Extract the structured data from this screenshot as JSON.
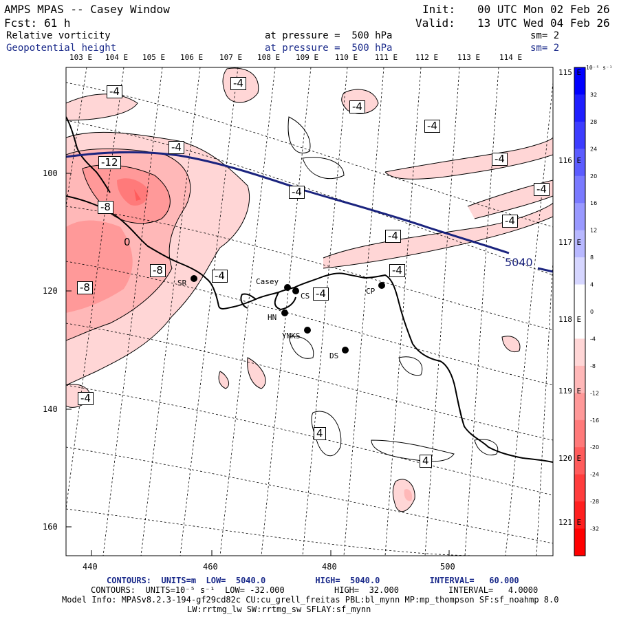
{
  "header": {
    "title": "AMPS MPAS -- Casey Window",
    "forecast_label": "Fcst:",
    "forecast_hours": "61 h",
    "init_label": "Init:",
    "init_time": "00 UTC Mon 02 Feb 26",
    "valid_label": "Valid:",
    "valid_time": "13 UTC Wed 04 Feb 26",
    "field1": "Relative vorticity",
    "field1_pressure": "at pressure =  500 hPa",
    "field1_sm": "sm= 2",
    "field2": "Geopotential height",
    "field2_pressure": "at pressure =  500 hPa",
    "field2_sm": "sm= 2"
  },
  "lon_top": [
    "103 E",
    "104 E",
    "105 E",
    "106 E",
    "107 E",
    "108 E",
    "109 E",
    "110 E",
    "111 E",
    "112 E",
    "113 E",
    "114 E"
  ],
  "lon_right": [
    "115 E",
    "116 E",
    "117 E",
    "118 E",
    "119 E",
    "120 E",
    "121 E"
  ],
  "y_axis": [
    "100",
    "120",
    "140",
    "160"
  ],
  "x_axis": [
    "440",
    "460",
    "480",
    "500"
  ],
  "colorbar": {
    "unit": "10⁻⁵ s⁻¹",
    "labels": [
      "32",
      "28",
      "24",
      "20",
      "16",
      "12",
      "8",
      "4",
      "0",
      "-4",
      "-8",
      "-12",
      "-16",
      "-20",
      "-24",
      "-28",
      "-32"
    ],
    "colors": [
      "#0000ff",
      "#1f1fff",
      "#3d3dff",
      "#5c5cff",
      "#7a7aff",
      "#9999ff",
      "#b8b8ff",
      "#d6d6ff",
      "#ffffff",
      "#ffffff",
      "#ffd6d6",
      "#ffb8b8",
      "#ff9999",
      "#ff7a7a",
      "#ff5c5c",
      "#ff3d3d",
      "#ff1f1f",
      "#ff0000"
    ]
  },
  "stations": [
    {
      "name": "SR"
    },
    {
      "name": "Casey"
    },
    {
      "name": "CS"
    },
    {
      "name": "HN"
    },
    {
      "name": "YMKS"
    },
    {
      "name": "DS"
    },
    {
      "name": "CP"
    }
  ],
  "contour_labels": [
    "-4",
    "-4",
    "-4",
    "-4",
    "-4",
    "-12",
    "-4",
    "-4",
    "-8",
    "-4",
    "-4",
    "-4",
    "-8",
    "-4",
    "-8",
    "-4",
    "-4",
    "-4",
    "4",
    "4",
    "0"
  ],
  "height_contour_label": "5040",
  "footer": {
    "contours1": "CONTOURS:  UNITS=m  LOW=  5040.0          HIGH=  5040.0          INTERVAL=   60.000",
    "contours2": "CONTOURS:  UNITS=10⁻⁵ s⁻¹  LOW= -32.000          HIGH=  32.000          INTERVAL=   4.0000",
    "model_info": "Model Info: MPASv8.2.3-194-gf29cd82c CU:cu_grell_freitas PBL:bl_mynn MP:mp_thompson SF:sf_noahmp 8.0",
    "model_info2": "LW:rrtmg_lw SW:rrtmg_sw SFLAY:sf_mynn"
  }
}
